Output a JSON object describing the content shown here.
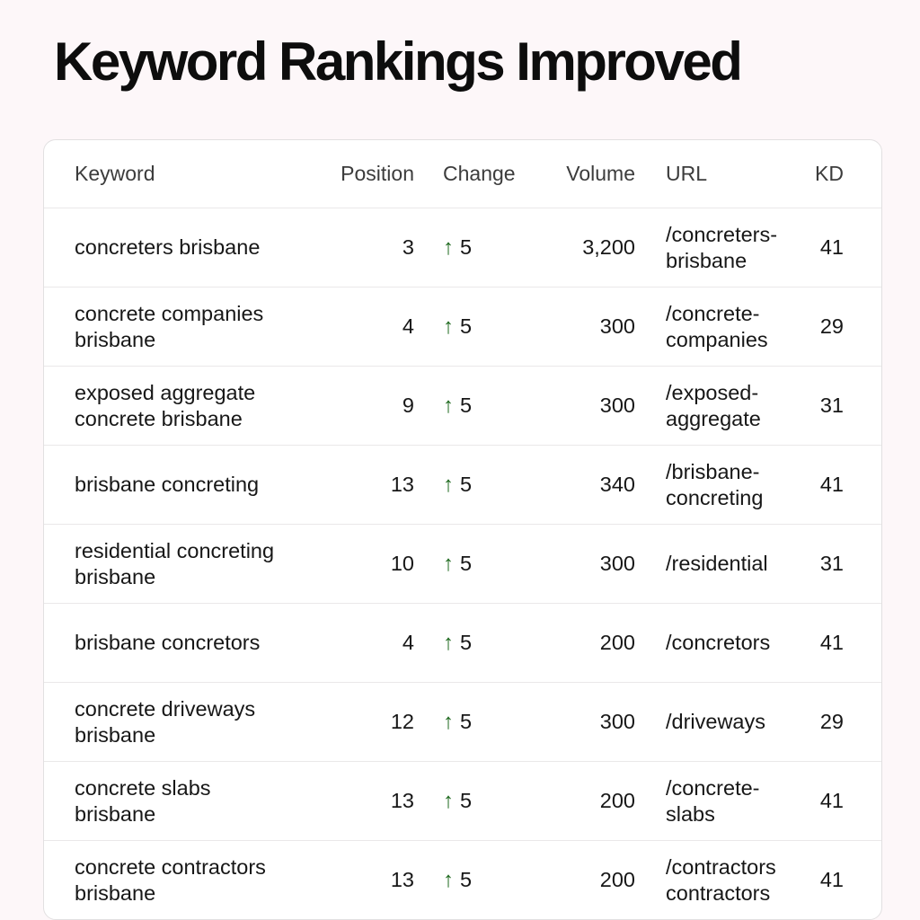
{
  "page": {
    "title": "Keyword Rankings Improved",
    "background_color": "#fdf7f9",
    "card_background": "#ffffff",
    "accent_green": "#1d681d"
  },
  "icons": {
    "up_arrow": "↑"
  },
  "table": {
    "columns": [
      {
        "key": "keyword",
        "label": "Keyword"
      },
      {
        "key": "position",
        "label": "Position"
      },
      {
        "key": "change",
        "label": "Change"
      },
      {
        "key": "volume",
        "label": "Volume"
      },
      {
        "key": "url",
        "label": "URL"
      },
      {
        "key": "kd",
        "label": "KD"
      }
    ],
    "rows": [
      {
        "keyword": "concreters brisbane",
        "position": "3",
        "change": "5",
        "volume": "3,200",
        "url": "/concreters-brisbane",
        "kd": "41"
      },
      {
        "keyword": "concrete companies brisbane",
        "position": "4",
        "change": "5",
        "volume": "300",
        "url": "/concrete-companies",
        "kd": "29"
      },
      {
        "keyword": "exposed aggregate concrete brisbane",
        "position": "9",
        "change": "5",
        "volume": "300",
        "url": "/exposed-aggregate",
        "kd": "31"
      },
      {
        "keyword": "brisbane concreting",
        "position": "13",
        "change": "5",
        "volume": "340",
        "url": "/brisbane-concreting",
        "kd": "41"
      },
      {
        "keyword": "residential concreting brisbane",
        "position": "10",
        "change": "5",
        "volume": "300",
        "url": "/residential",
        "kd": "31"
      },
      {
        "keyword": "brisbane concretors",
        "position": "4",
        "change": "5",
        "volume": "200",
        "url": "/concretors",
        "kd": "41"
      },
      {
        "keyword": "concrete driveways brisbane",
        "position": "12",
        "change": "5",
        "volume": "300",
        "url": "/driveways",
        "kd": "29"
      },
      {
        "keyword": "concrete slabs brisbane",
        "position": "13",
        "change": "5",
        "volume": "200",
        "url": "/concrete-slabs",
        "kd": "41"
      },
      {
        "keyword": "concrete contractors brisbane",
        "position": "13",
        "change": "5",
        "volume": "200",
        "url": "/contractors contractors",
        "kd": "41"
      }
    ]
  },
  "chart_data": {
    "type": "table",
    "title": "Keyword Rankings Improved",
    "columns": [
      "Keyword",
      "Position",
      "Change",
      "Volume",
      "URL",
      "KD"
    ],
    "rows": [
      [
        "concreters brisbane",
        3,
        "+5",
        "3,200",
        "/concreters-brisbane",
        41
      ],
      [
        "concrete companies brisbane",
        4,
        "+5",
        "300",
        "/concrete-companies",
        29
      ],
      [
        "exposed aggregate concrete brisbane",
        9,
        "+5",
        "300",
        "/exposed-aggregate",
        31
      ],
      [
        "brisbane concreting",
        13,
        "+5",
        "340",
        "/brisbane-concreting",
        41
      ],
      [
        "residential concreting brisbane",
        10,
        "+5",
        "300",
        "/residential",
        31
      ],
      [
        "brisbane concretors",
        4,
        "+5",
        "200",
        "/concretors",
        41
      ],
      [
        "concrete driveways brisbane",
        12,
        "+5",
        "300",
        "/driveways",
        29
      ],
      [
        "concrete slabs brisbane",
        13,
        "+5",
        "200",
        "/concrete-slabs",
        41
      ],
      [
        "concrete contractors brisbane",
        13,
        "+5",
        "200",
        "/contractors contractors",
        41
      ]
    ]
  }
}
